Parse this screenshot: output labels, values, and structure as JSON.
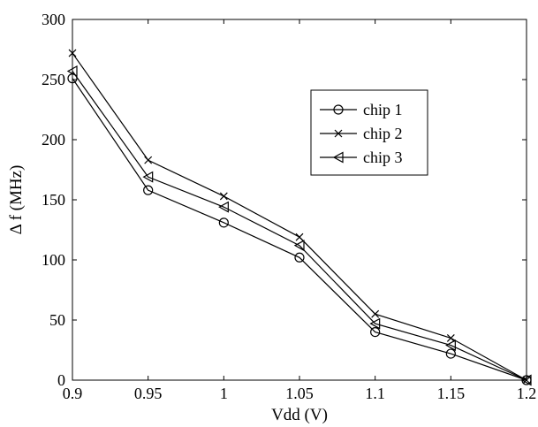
{
  "chart_data": {
    "type": "line",
    "title": "",
    "xlabel": "Vdd (V)",
    "ylabel": "Δ f (MHz)",
    "xlim": [
      0.9,
      1.2
    ],
    "ylim": [
      0,
      300
    ],
    "xticks": [
      0.9,
      0.95,
      1,
      1.05,
      1.1,
      1.15,
      1.2
    ],
    "xtick_labels": [
      "0.9",
      "0.95",
      "1",
      "1.05",
      "1.1",
      "1.15",
      "1.2"
    ],
    "yticks": [
      0,
      50,
      100,
      150,
      200,
      250,
      300
    ],
    "ytick_labels": [
      "0",
      "50",
      "100",
      "150",
      "200",
      "250",
      "300"
    ],
    "grid": false,
    "legend_position": "upper-right (inset)",
    "x": [
      0.9,
      0.95,
      1.0,
      1.05,
      1.1,
      1.15,
      1.2
    ],
    "series": [
      {
        "name": "chip 1",
        "marker": "circle",
        "values": [
          251,
          158,
          131,
          102,
          40,
          22,
          0
        ]
      },
      {
        "name": "chip 2",
        "marker": "x",
        "values": [
          272,
          183,
          153,
          119,
          55,
          35,
          0
        ]
      },
      {
        "name": "chip 3",
        "marker": "triangle-left",
        "values": [
          257,
          169,
          144,
          112,
          47,
          29,
          0
        ]
      }
    ],
    "colors": {
      "line": "#000000",
      "axes": "#000000",
      "background": "#ffffff"
    }
  }
}
